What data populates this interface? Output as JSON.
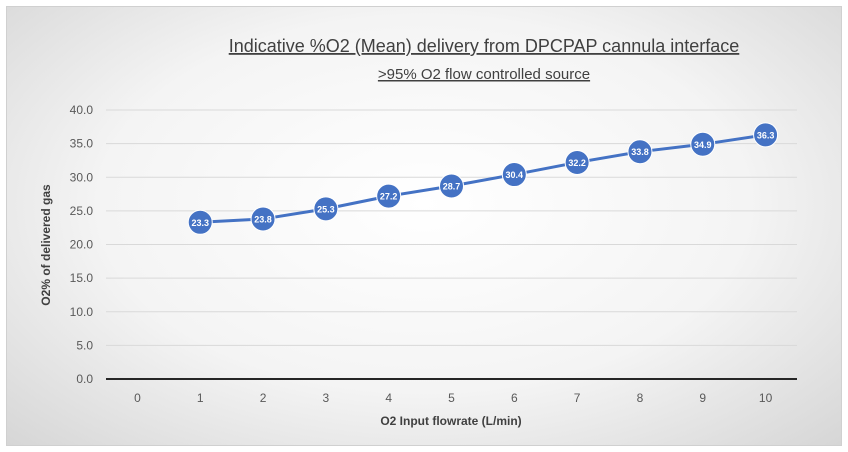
{
  "chart_data": {
    "type": "line",
    "title": "Indicative %O2 (Mean) delivery from DPCPAP  cannula interface",
    "subtitle": ">95% O2 flow controlled source",
    "xlabel": "O2 Input flowrate (L/min)",
    "ylabel": "O2% of delivered gas",
    "x_ticks": [
      "0",
      "1",
      "2",
      "3",
      "4",
      "5",
      "6",
      "7",
      "8",
      "9",
      "10"
    ],
    "y_ticks": [
      "0.0",
      "5.0",
      "10.0",
      "15.0",
      "20.0",
      "25.0",
      "30.0",
      "35.0",
      "40.0"
    ],
    "ylim": [
      0,
      40
    ],
    "grid": true,
    "legend": "none",
    "series": [
      {
        "name": "O2%",
        "color": "#4472C4",
        "x": [
          1,
          2,
          3,
          4,
          5,
          6,
          7,
          8,
          9,
          10
        ],
        "values": [
          23.3,
          23.8,
          25.3,
          27.2,
          28.7,
          30.4,
          32.2,
          33.8,
          34.9,
          36.3
        ],
        "labels": [
          "23.3",
          "23.8",
          "25.3",
          "27.2",
          "28.7",
          "30.4",
          "32.2",
          "33.8",
          "34.9",
          "36.3"
        ]
      }
    ]
  }
}
